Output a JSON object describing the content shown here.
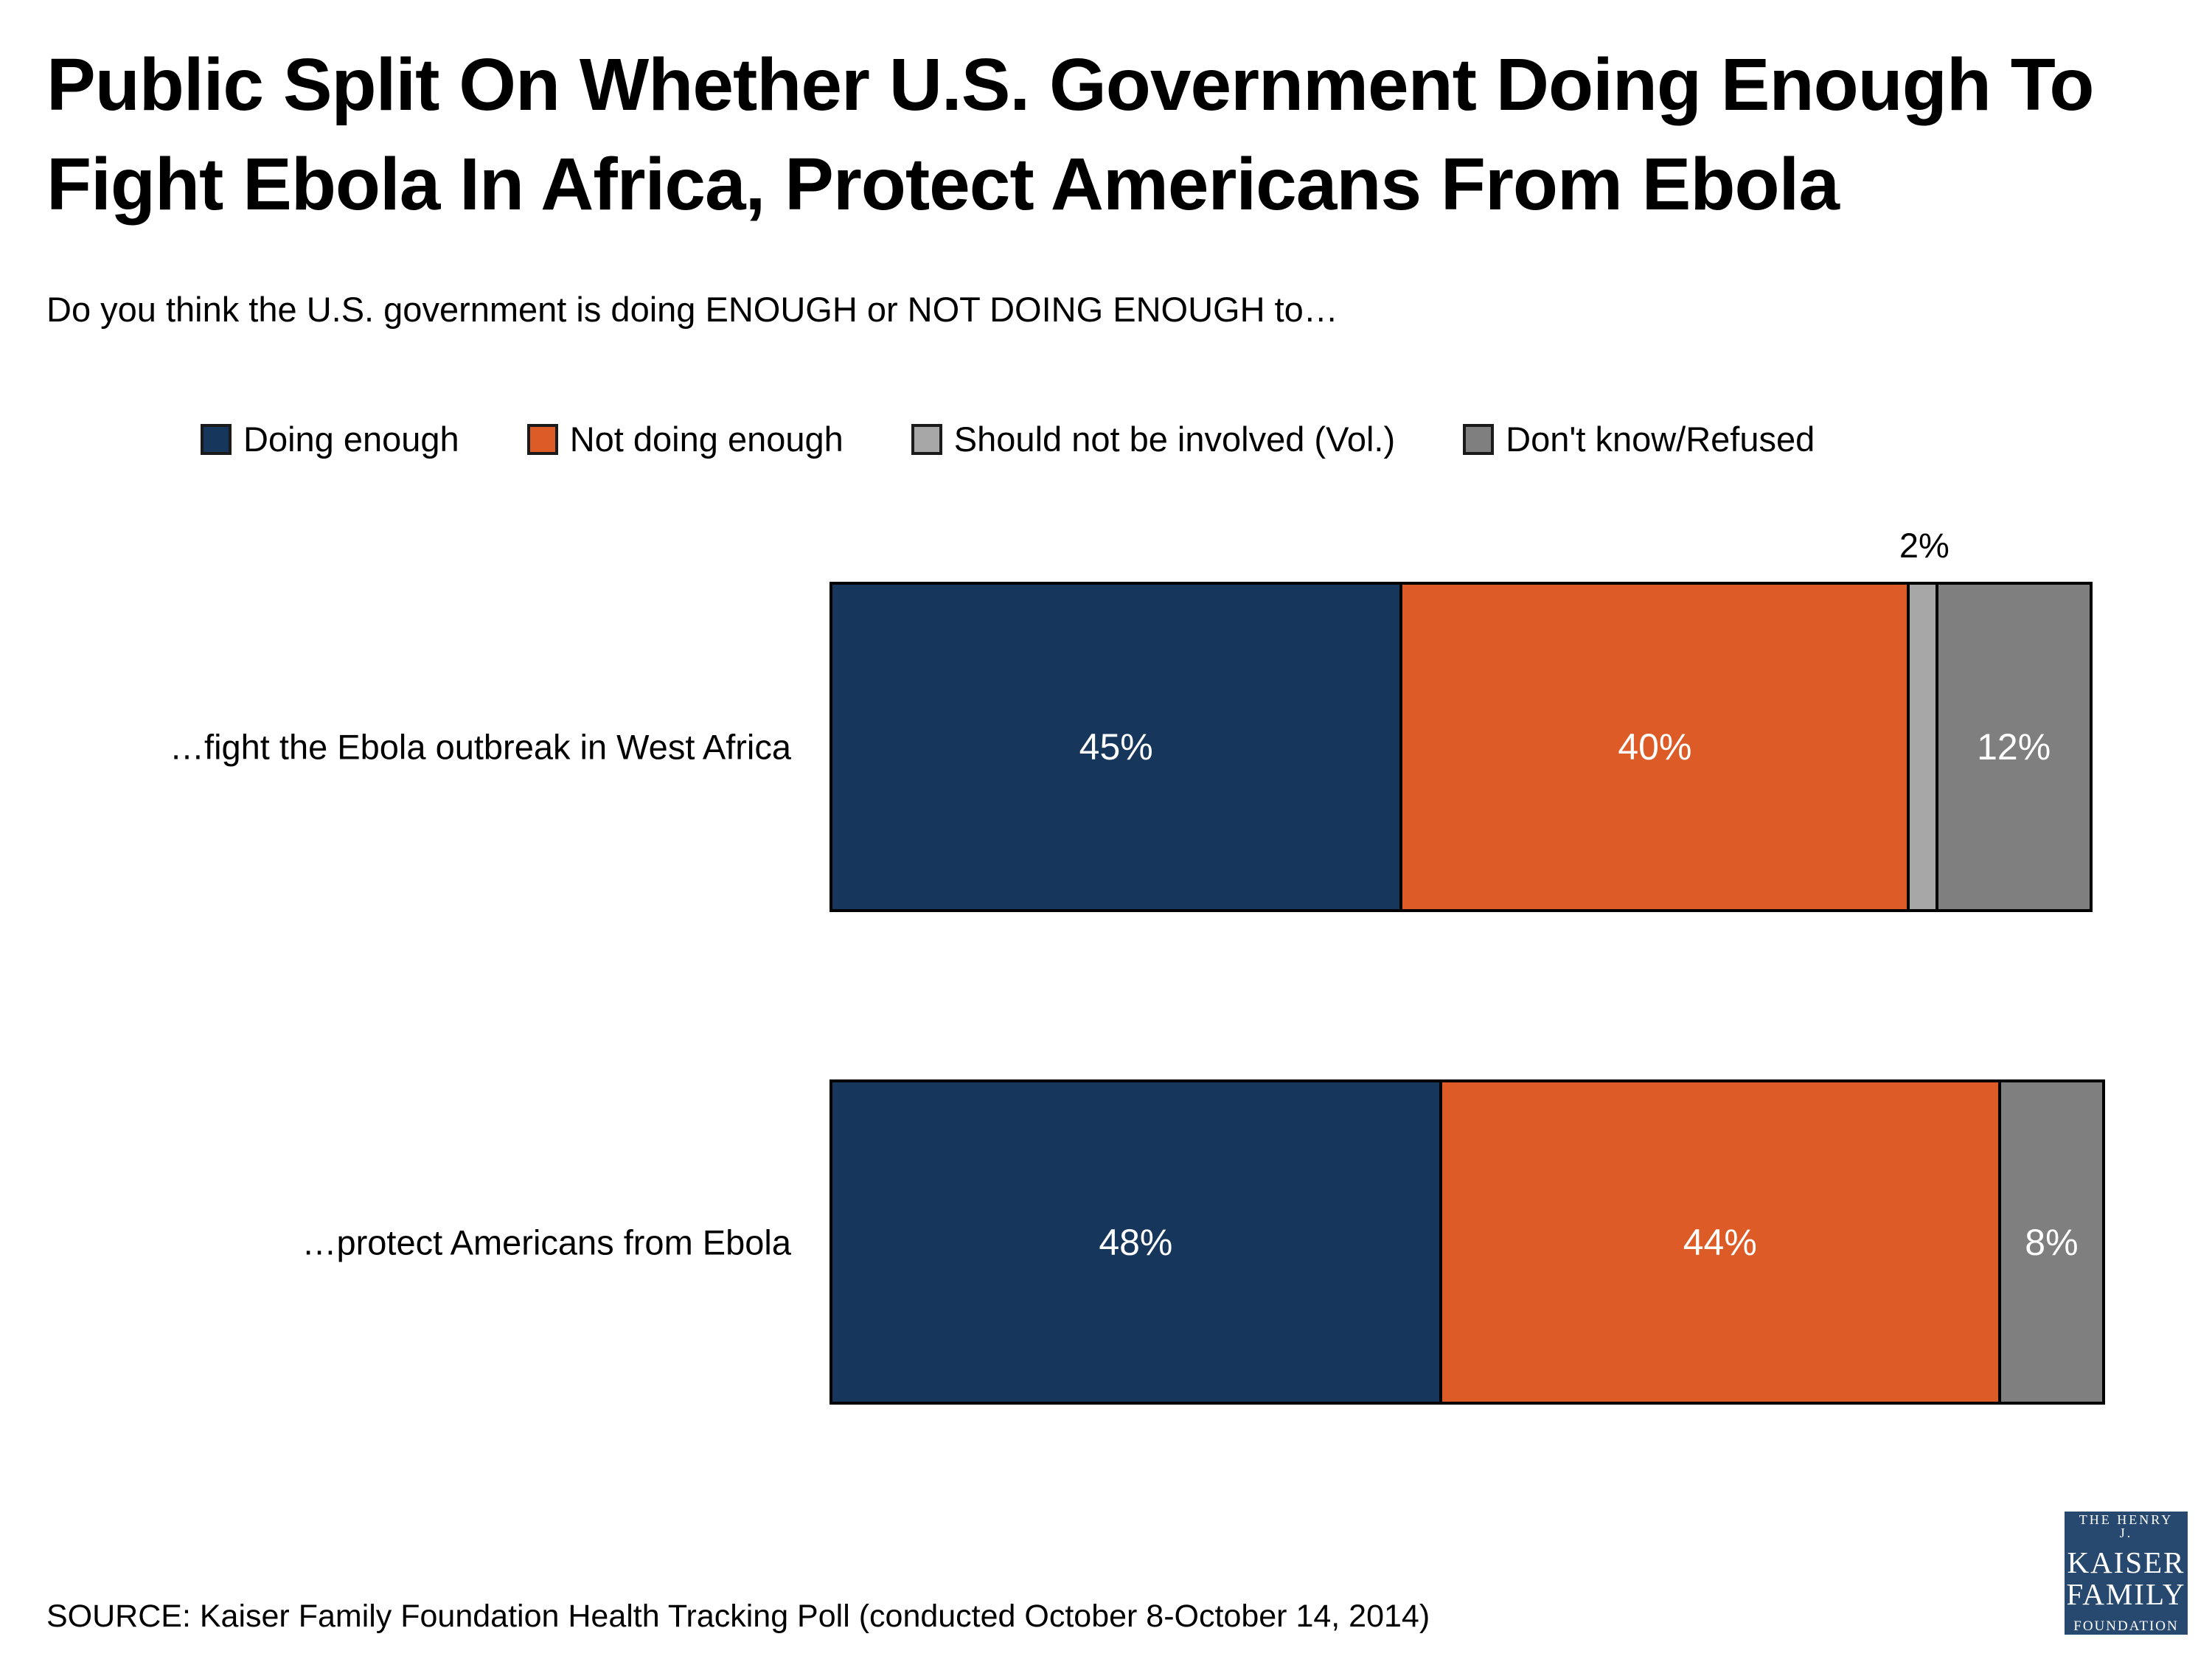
{
  "header": {
    "title_line1": "Public Split On Whether U.S. Government Doing Enough To",
    "title_line2": "Fight Ebola In Africa, Protect Americans From Ebola",
    "subtitle": "Do you think the U.S. government is doing ENOUGH or NOT DOING ENOUGH to…"
  },
  "chart_data": {
    "type": "bar",
    "orientation": "horizontal_stacked",
    "xlim": [
      0,
      100
    ],
    "grid": false,
    "axis_visible": false,
    "legend_position": "top",
    "categories": [
      "…fight the Ebola outbreak in West Africa",
      "…protect Americans from Ebola"
    ],
    "series": [
      {
        "name": "Doing enough",
        "color": "#17365C",
        "values": [
          45,
          48
        ]
      },
      {
        "name": "Not doing enough",
        "color": "#DC5B26",
        "values": [
          40,
          44
        ]
      },
      {
        "name": "Should not be involved (Vol.)",
        "color": "#A7A7A7",
        "values": [
          2,
          null
        ]
      },
      {
        "name": "Don't know/Refused",
        "color": "#7F7F7F",
        "values": [
          12,
          8
        ]
      }
    ],
    "value_label_format": "{v}%",
    "value_labels": {
      "row1": [
        "45%",
        "40%",
        "2%",
        "12%"
      ],
      "row2": [
        "48%",
        "44%",
        "8%"
      ]
    },
    "small_value_label_placement": "above_bar"
  },
  "footer": {
    "source": "SOURCE: Kaiser Family Foundation Health Tracking Poll (conducted October 8-October 14, 2014)"
  },
  "logo": {
    "line1": "THE HENRY J.",
    "line2": "KAISER",
    "line3": "FAMILY",
    "line4": "FOUNDATION",
    "background_color": "#27496F"
  }
}
